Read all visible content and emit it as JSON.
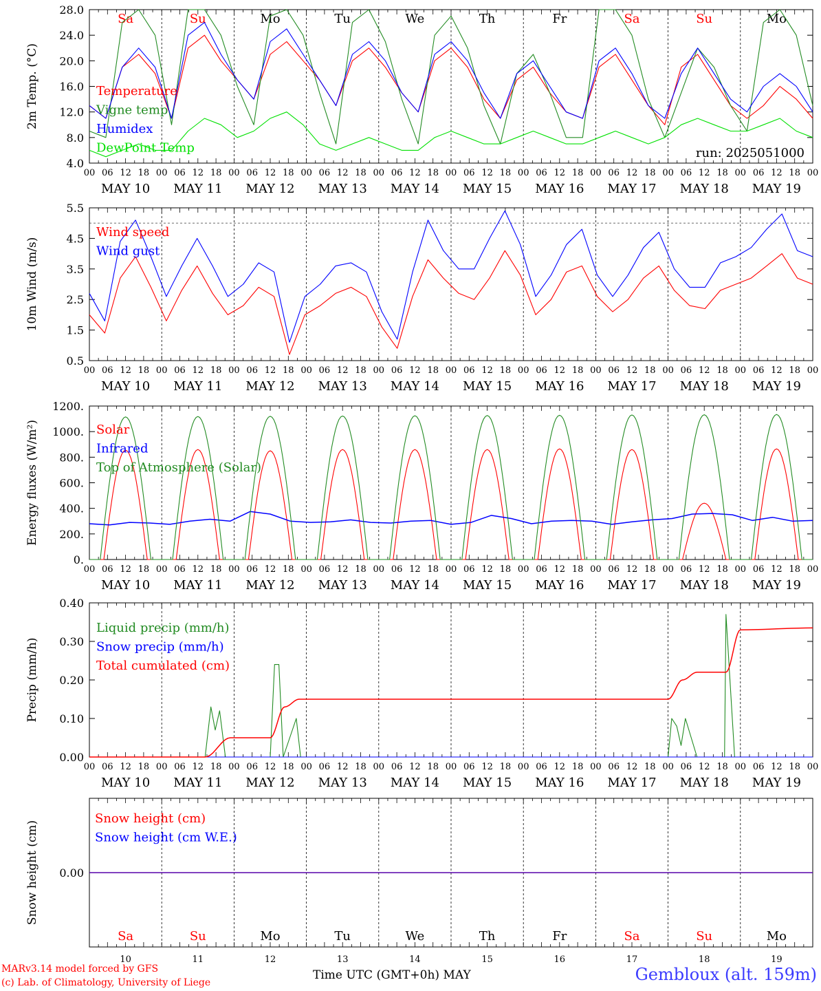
{
  "chart_data": {
    "days": [
      {
        "date": "MAY 10",
        "dow": "Sa",
        "weekend": true,
        "num": "10"
      },
      {
        "date": "MAY 11",
        "dow": "Su",
        "weekend": true,
        "num": "11"
      },
      {
        "date": "MAY 12",
        "dow": "Mo",
        "weekend": false,
        "num": "12"
      },
      {
        "date": "MAY 13",
        "dow": "Tu",
        "weekend": false,
        "num": "13"
      },
      {
        "date": "MAY 14",
        "dow": "We",
        "weekend": false,
        "num": "14"
      },
      {
        "date": "MAY 15",
        "dow": "Th",
        "weekend": false,
        "num": "15"
      },
      {
        "date": "MAY 16",
        "dow": "Fr",
        "weekend": false,
        "num": "16"
      },
      {
        "date": "MAY 17",
        "dow": "Sa",
        "weekend": true,
        "num": "17"
      },
      {
        "date": "MAY 18",
        "dow": "Su",
        "weekend": true,
        "num": "18"
      },
      {
        "date": "MAY 19",
        "dow": "Mo",
        "weekend": false,
        "num": "19"
      }
    ],
    "hour_ticks": [
      "00",
      "06",
      "12",
      "18"
    ],
    "final_hour_tick": "00",
    "panels": [
      {
        "type": "line",
        "ylabel": "2m Temp. (°C)",
        "ylim": [
          4.0,
          28.0
        ],
        "yticks": [
          "4.0",
          "8.0",
          "12.0",
          "16.0",
          "20.0",
          "24.0",
          "28.0"
        ],
        "ytick_values": [
          4,
          8,
          12,
          16,
          20,
          24,
          28
        ],
        "annotation": "run: 2025051000",
        "series": [
          {
            "name": "Temperature",
            "color": "#ff0000",
            "values": [
              13,
              11,
              19,
              21,
              18,
              11,
              22,
              24,
              20,
              17,
              14,
              21,
              23,
              20,
              17,
              13,
              20,
              22,
              19,
              15,
              12,
              20,
              22,
              19,
              14,
              11,
              17,
              19,
              15,
              12,
              11,
              19,
              21,
              17,
              13,
              10,
              19,
              21,
              17,
              13,
              11,
              13,
              16,
              14,
              11
            ]
          },
          {
            "name": "Vigne temp",
            "color": "#228b22",
            "values": [
              9,
              8,
              26,
              28,
              24,
              10,
              28,
              28,
              24,
              16,
              10,
              27,
              28,
              24,
              15,
              7,
              26,
              28,
              23,
              14,
              7,
              24,
              27,
              22,
              13,
              7,
              18,
              21,
              15,
              8,
              8,
              28,
              28,
              24,
              14,
              8,
              15,
              22,
              19,
              13,
              9,
              26,
              28,
              24,
              13
            ]
          },
          {
            "name": "Humidex",
            "color": "#0000ff",
            "values": [
              13,
              11,
              19,
              22,
              19,
              11,
              24,
              26,
              21,
              17,
              14,
              23,
              25,
              21,
              17,
              13,
              21,
              23,
              20,
              15,
              12,
              21,
              23,
              20,
              15,
              11,
              18,
              20,
              16,
              12,
              11,
              20,
              22,
              18,
              13,
              11,
              18,
              22,
              18,
              14,
              12,
              16,
              18,
              16,
              12
            ]
          },
          {
            "name": "DewPoint Temp",
            "color": "#00e000",
            "values": [
              6,
              5,
              6,
              7,
              6,
              6,
              9,
              11,
              10,
              8,
              9,
              11,
              12,
              10,
              7,
              6,
              7,
              8,
              7,
              6,
              6,
              8,
              9,
              8,
              7,
              7,
              8,
              9,
              8,
              7,
              7,
              8,
              9,
              8,
              7,
              8,
              10,
              11,
              10,
              9,
              9,
              10,
              11,
              9,
              8
            ]
          }
        ]
      },
      {
        "type": "line",
        "ylabel": "10m Wind (m/s)",
        "ylim": [
          0.5,
          5.5
        ],
        "yticks": [
          "0.5",
          "1.5",
          "2.5",
          "3.5",
          "4.5",
          "5.5"
        ],
        "ytick_values": [
          0.5,
          1.5,
          2.5,
          3.5,
          4.5,
          5.5
        ],
        "reference_line": 5.0,
        "series": [
          {
            "name": "Wind speed",
            "color": "#ff0000",
            "values": [
              2.0,
              1.4,
              3.2,
              3.9,
              2.9,
              1.8,
              2.8,
              3.6,
              2.7,
              2.0,
              2.3,
              2.9,
              2.6,
              0.7,
              2.0,
              2.3,
              2.7,
              2.9,
              2.6,
              1.6,
              0.9,
              2.6,
              3.8,
              3.2,
              2.7,
              2.5,
              3.2,
              4.1,
              3.3,
              2.0,
              2.5,
              3.4,
              3.6,
              2.6,
              2.1,
              2.5,
              3.2,
              3.6,
              2.8,
              2.3,
              2.2,
              2.8,
              3.0,
              3.2,
              3.6,
              4.0,
              3.2,
              3.0
            ]
          },
          {
            "name": "Wind gust",
            "color": "#0000ff",
            "values": [
              2.7,
              1.8,
              4.4,
              5.1,
              3.9,
              2.6,
              3.6,
              4.5,
              3.6,
              2.6,
              3.0,
              3.7,
              3.4,
              1.1,
              2.6,
              3.0,
              3.6,
              3.7,
              3.4,
              2.1,
              1.2,
              3.4,
              5.1,
              4.1,
              3.5,
              3.5,
              4.5,
              5.4,
              4.3,
              2.6,
              3.3,
              4.3,
              4.8,
              3.3,
              2.6,
              3.3,
              4.2,
              4.7,
              3.5,
              2.9,
              2.9,
              3.7,
              3.9,
              4.2,
              4.8,
              5.3,
              4.1,
              3.9
            ]
          }
        ]
      },
      {
        "type": "line",
        "ylabel": "Energy fluxes (W/m²)",
        "ylim": [
          0,
          1200
        ],
        "yticks": [
          "0.",
          "200.",
          "400.",
          "600.",
          "800.",
          "1000.",
          "1200."
        ],
        "ytick_values": [
          0,
          200,
          400,
          600,
          800,
          1000,
          1200
        ],
        "series": [
          {
            "name": "Solar",
            "color": "#ff0000",
            "daily_peak": [
              855,
              860,
              850,
              860,
              860,
              860,
              865,
              860,
              440,
              865
            ]
          },
          {
            "name": "Infrared",
            "color": "#0000ff",
            "values": [
              280,
              270,
              290,
              285,
              275,
              300,
              315,
              300,
              375,
              355,
              300,
              290,
              295,
              310,
              290,
              285,
              300,
              305,
              275,
              290,
              345,
              320,
              280,
              300,
              305,
              300,
              275,
              295,
              310,
              320,
              355,
              360,
              350,
              305,
              330,
              300,
              305
            ]
          },
          {
            "name": "Top of Atmosphere (Solar)",
            "color": "#228b22",
            "daily_peak": [
              1115,
              1118,
              1120,
              1122,
              1124,
              1126,
              1128,
              1130,
              1132,
              1134
            ]
          }
        ]
      },
      {
        "type": "line",
        "ylabel": "Precip (mm/h)",
        "ylim": [
          0.0,
          0.4
        ],
        "yticks": [
          "0.00",
          "0.10",
          "0.20",
          "0.30",
          "0.40"
        ],
        "ytick_values": [
          0.0,
          0.1,
          0.2,
          0.3,
          0.4
        ],
        "series": [
          {
            "name": "Liquid precip (mm/h)",
            "color": "#228b22",
            "events": [
              [
                1.6,
                0.0
              ],
              [
                1.68,
                0.13
              ],
              [
                1.74,
                0.07
              ],
              [
                1.8,
                0.12
              ],
              [
                1.88,
                0.0
              ],
              [
                2.5,
                0.0
              ],
              [
                2.56,
                0.24
              ],
              [
                2.62,
                0.24
              ],
              [
                2.68,
                0.0
              ],
              [
                2.86,
                0.1
              ],
              [
                2.92,
                0.0
              ],
              [
                8.0,
                0.0
              ],
              [
                8.05,
                0.1
              ],
              [
                8.12,
                0.08
              ],
              [
                8.18,
                0.03
              ],
              [
                8.24,
                0.1
              ],
              [
                8.4,
                0.0
              ],
              [
                8.78,
                0.0
              ],
              [
                8.8,
                0.37
              ],
              [
                8.92,
                0.0
              ],
              [
                9.0,
                0.0
              ]
            ]
          },
          {
            "name": "Snow precip (mm/h)",
            "color": "#0000ff",
            "values": [
              0
            ]
          },
          {
            "name": "Total cumulated (cm)",
            "color": "#ff0000",
            "steps": [
              [
                0,
                0.0
              ],
              [
                1.6,
                0.0
              ],
              [
                1.95,
                0.05
              ],
              [
                2.5,
                0.05
              ],
              [
                2.7,
                0.13
              ],
              [
                2.9,
                0.15
              ],
              [
                8.0,
                0.15
              ],
              [
                8.2,
                0.2
              ],
              [
                8.4,
                0.22
              ],
              [
                8.8,
                0.22
              ],
              [
                9.0,
                0.33
              ],
              [
                10,
                0.335
              ]
            ]
          }
        ]
      },
      {
        "type": "line",
        "ylabel": "Snow height (cm)",
        "ylim": [
          -0.1,
          0.1
        ],
        "yticks": [
          "0.00"
        ],
        "ytick_values": [
          0.0
        ],
        "series": [
          {
            "name": "Snow height (cm)",
            "color": "#ff0000",
            "values": [
              0
            ]
          },
          {
            "name": "Snow height (cm W.E.)",
            "color": "#0000ff",
            "values": [
              0
            ]
          }
        ]
      }
    ],
    "xlabel": "Time UTC (GMT+0h)",
    "month": "MAY",
    "colors": {
      "weekend": "#ff0000",
      "weekday": "#000000"
    }
  },
  "footer": {
    "credit_line1": "MARv3.14 model forced by GFS",
    "credit_line2": "(c) Lab. of Climatology, University of Liege",
    "station": "Gembloux (alt. 159m)"
  }
}
